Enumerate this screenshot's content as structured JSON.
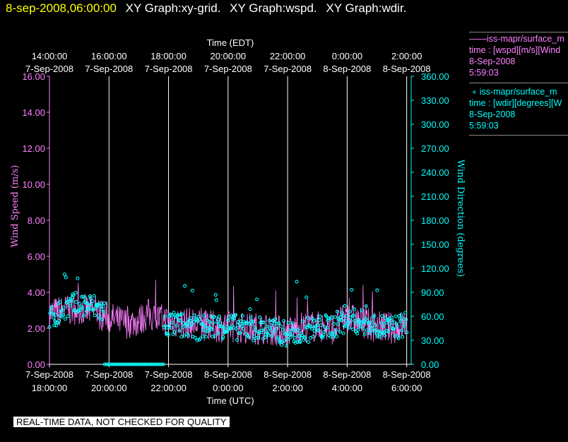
{
  "header": {
    "timestamp": "8-sep-2008,06:00:00",
    "graphs": [
      "XY Graph:xy-grid.",
      "XY Graph:wspd.",
      "XY Graph:wdir."
    ]
  },
  "legend": [
    {
      "line1": "iss-mapr/surface_m",
      "line2": "time : [wspd][m/s][Wind",
      "line3": "8-Sep-2008",
      "line4": "5:59:03"
    },
    {
      "line1": "iss-mapr/surface_m",
      "line2": "time : [wdir][degrees][W",
      "line3": "8-Sep-2008",
      "line4": "5:59:03"
    }
  ],
  "footer": "REAL-TIME DATA, NOT CHECKED FOR QUALITY",
  "colors": {
    "wspd": "#ff80ff",
    "wdir": "#00ffff",
    "grid": "#ffffff",
    "title_ts": "#ffff00"
  },
  "chart_data": {
    "type": "scatter",
    "top_axis_label": "Time (EDT)",
    "bottom_axis_label": "Time (UTC)",
    "ylabel_left": "Wind Speed (m/s)",
    "ylabel_right": "Wind Direction (degrees)",
    "x_range_hours_utc": [
      18,
      30.15
    ],
    "y_left_range": [
      0,
      16
    ],
    "y_right_range": [
      0,
      360
    ],
    "y_left_ticks": [
      "0.00",
      "2.00",
      "4.00",
      "6.00",
      "8.00",
      "10.00",
      "12.00",
      "14.00",
      "16.00"
    ],
    "y_right_ticks": [
      "0.00",
      "30.00",
      "60.00",
      "90.00",
      "120.00",
      "150.00",
      "180.00",
      "210.00",
      "240.00",
      "270.00",
      "300.00",
      "330.00",
      "360.00"
    ],
    "bottom_ticks": [
      {
        "h": 18,
        "date": "7-Sep-2008",
        "time": "18:00:00"
      },
      {
        "h": 20,
        "date": "7-Sep-2008",
        "time": "20:00:00"
      },
      {
        "h": 22,
        "date": "7-Sep-2008",
        "time": "22:00:00"
      },
      {
        "h": 24,
        "date": "8-Sep-2008",
        "time": "0:00:00"
      },
      {
        "h": 26,
        "date": "8-Sep-2008",
        "time": "2:00:00"
      },
      {
        "h": 28,
        "date": "8-Sep-2008",
        "time": "4:00:00"
      },
      {
        "h": 30,
        "date": "8-Sep-2008",
        "time": "6:00:00"
      }
    ],
    "top_ticks": [
      {
        "h": 18,
        "time": "14:00:00",
        "date": "7-Sep-2008"
      },
      {
        "h": 20,
        "time": "16:00:00",
        "date": "7-Sep-2008"
      },
      {
        "h": 22,
        "time": "18:00:00",
        "date": "7-Sep-2008"
      },
      {
        "h": 24,
        "time": "20:00:00",
        "date": "7-Sep-2008"
      },
      {
        "h": 26,
        "time": "22:00:00",
        "date": "7-Sep-2008"
      },
      {
        "h": 28,
        "time": "0:00:00",
        "date": "8-Sep-2008"
      },
      {
        "h": 30,
        "time": "2:00:00",
        "date": "8-Sep-2008"
      }
    ],
    "series": [
      {
        "name": "wspd",
        "style": "line",
        "axis": "left",
        "units": "m/s",
        "x_hours": [
          18,
          18.5,
          19,
          19.5,
          20,
          20.5,
          21,
          21.3,
          21.5,
          22,
          22.5,
          23,
          23.5,
          24,
          24.5,
          25,
          25.5,
          26,
          26.5,
          27,
          27.5,
          28,
          28.5,
          29,
          29.5,
          30
        ],
        "values": [
          2.8,
          3.0,
          3.1,
          2.9,
          2.6,
          2.3,
          2.4,
          2.8,
          2.6,
          2.4,
          2.3,
          2.2,
          2.1,
          2.1,
          2.0,
          2.0,
          1.9,
          1.8,
          2.1,
          2.1,
          2.0,
          2.6,
          2.3,
          2.1,
          2.0,
          2.2
        ]
      },
      {
        "name": "wdir",
        "style": "circles",
        "axis": "right",
        "units": "degrees",
        "x_hours": [
          18,
          18.5,
          19,
          19.5,
          20,
          20.5,
          21,
          21.5,
          22,
          22.5,
          23,
          23.5,
          24,
          24.5,
          25,
          25.5,
          26,
          26.5,
          27,
          27.5,
          28,
          28.5,
          29,
          29.5,
          30
        ],
        "values": [
          55,
          70,
          75,
          72,
          62,
          55,
          50,
          48,
          50,
          48,
          45,
          48,
          48,
          45,
          45,
          42,
          38,
          42,
          45,
          48,
          55,
          52,
          48,
          45,
          50
        ],
        "dropout_hours": [
          19.85,
          21.85
        ],
        "dropout_value": 0
      }
    ]
  }
}
